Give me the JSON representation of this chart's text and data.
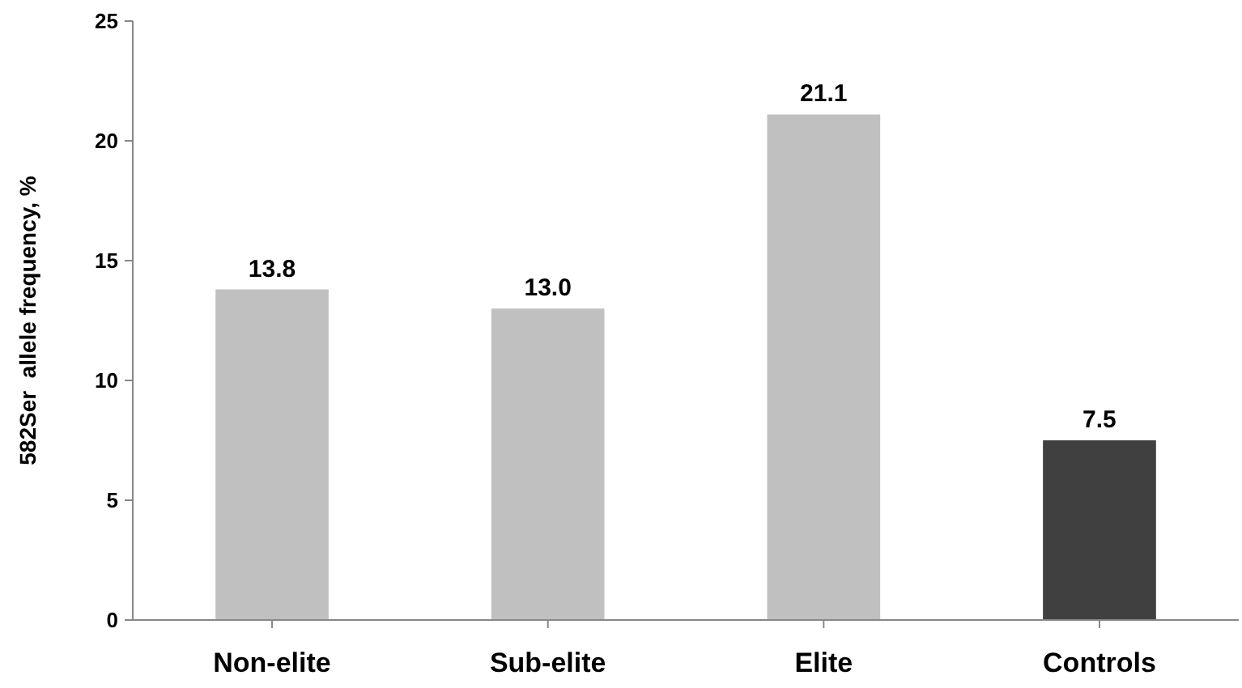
{
  "chart_data": {
    "type": "bar",
    "ylabel": "582Ser  allele frequency, %",
    "categories": [
      "Non-elite",
      "Sub-elite",
      "Elite",
      "Controls"
    ],
    "values": [
      13.8,
      13.0,
      21.1,
      7.5
    ],
    "colors": [
      "#c0c0c0",
      "#c0c0c0",
      "#c0c0c0",
      "#404040"
    ],
    "value_labels": [
      "13.8",
      "13.0",
      "21.1",
      "7.5"
    ],
    "ylim": [
      0,
      25
    ],
    "yticks": [
      0,
      5,
      10,
      15,
      20,
      25
    ],
    "grid": false
  }
}
